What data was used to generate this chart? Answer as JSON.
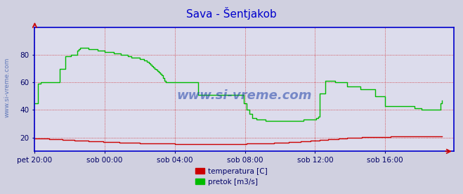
{
  "title": "Sava - Šentjakob",
  "title_color": "#0000cc",
  "title_fontsize": 11,
  "bg_color": "#d0d0e0",
  "plot_bg_color": "#dcdcec",
  "grid_color": "#cc0000",
  "tick_color": "#000066",
  "watermark": "www.si-vreme.com",
  "watermark_color": "#2244aa",
  "side_label": "www.si-vreme.com",
  "xlim": [
    0,
    287
  ],
  "ylim": [
    10,
    100
  ],
  "yticks": [
    20,
    40,
    60,
    80
  ],
  "xtick_labels": [
    "pet 20:00",
    "sob 00:00",
    "sob 04:00",
    "sob 08:00",
    "sob 12:00",
    "sob 16:00"
  ],
  "xtick_positions": [
    0,
    48,
    96,
    144,
    192,
    240
  ],
  "temp_color": "#cc0000",
  "flow_color": "#00bb00",
  "axis_color": "#0000cc",
  "legend_labels": [
    "temperatura [C]",
    "pretok [m3/s]"
  ],
  "legend_colors": [
    "#cc0000",
    "#00bb00"
  ],
  "temp_data": [
    19.5,
    19.5,
    19.4,
    19.4,
    19.3,
    19.3,
    19.2,
    19.2,
    19.1,
    19.1,
    19.0,
    19.0,
    18.9,
    18.9,
    18.8,
    18.7,
    18.7,
    18.6,
    18.6,
    18.5,
    18.4,
    18.4,
    18.3,
    18.3,
    18.2,
    18.2,
    18.1,
    18.0,
    18.0,
    17.9,
    17.9,
    17.8,
    17.8,
    17.7,
    17.7,
    17.6,
    17.6,
    17.5,
    17.5,
    17.4,
    17.4,
    17.3,
    17.3,
    17.2,
    17.2,
    17.1,
    17.1,
    17.0,
    17.0,
    16.9,
    16.9,
    16.8,
    16.8,
    16.7,
    16.7,
    16.7,
    16.6,
    16.6,
    16.5,
    16.5,
    16.5,
    16.4,
    16.4,
    16.4,
    16.3,
    16.3,
    16.2,
    16.2,
    16.2,
    16.1,
    16.1,
    16.1,
    16.0,
    16.0,
    16.0,
    15.9,
    15.9,
    15.9,
    15.8,
    15.8,
    15.8,
    15.8,
    15.7,
    15.7,
    15.7,
    15.7,
    15.6,
    15.6,
    15.6,
    15.6,
    15.5,
    15.5,
    15.5,
    15.5,
    15.5,
    15.5,
    15.4,
    15.4,
    15.4,
    15.4,
    15.4,
    15.3,
    15.3,
    15.3,
    15.3,
    15.3,
    15.3,
    15.3,
    15.3,
    15.3,
    15.3,
    15.2,
    15.2,
    15.2,
    15.2,
    15.2,
    15.2,
    15.2,
    15.2,
    15.2,
    15.2,
    15.2,
    15.2,
    15.2,
    15.2,
    15.2,
    15.2,
    15.2,
    15.2,
    15.2,
    15.2,
    15.2,
    15.2,
    15.3,
    15.3,
    15.3,
    15.3,
    15.3,
    15.3,
    15.3,
    15.3,
    15.4,
    15.4,
    15.4,
    15.4,
    15.5,
    15.5,
    15.5,
    15.5,
    15.5,
    15.6,
    15.6,
    15.6,
    15.7,
    15.7,
    15.7,
    15.8,
    15.8,
    15.8,
    15.9,
    15.9,
    15.9,
    16.0,
    16.0,
    16.1,
    16.1,
    16.2,
    16.2,
    16.3,
    16.3,
    16.4,
    16.4,
    16.5,
    16.5,
    16.6,
    16.7,
    16.7,
    16.8,
    16.8,
    16.9,
    17.0,
    17.0,
    17.1,
    17.2,
    17.2,
    17.3,
    17.4,
    17.5,
    17.5,
    17.6,
    17.7,
    17.8,
    17.8,
    17.9,
    18.0,
    18.1,
    18.2,
    18.2,
    18.3,
    18.4,
    18.5,
    18.6,
    18.6,
    18.7,
    18.8,
    18.9,
    19.0,
    19.0,
    19.1,
    19.2,
    19.3,
    19.3,
    19.4,
    19.5,
    19.6,
    19.6,
    19.7,
    19.7,
    19.8,
    19.8,
    19.9,
    19.9,
    20.0,
    20.0,
    20.1,
    20.1,
    20.1,
    20.2,
    20.2,
    20.2,
    20.3,
    20.3,
    20.3,
    20.3,
    20.4,
    20.4,
    20.4,
    20.4,
    20.5,
    20.5,
    20.5,
    20.5,
    20.5,
    20.5,
    20.6,
    20.6,
    20.6,
    20.6,
    20.6,
    20.6,
    20.6,
    20.6,
    20.7,
    20.7,
    20.7,
    20.7,
    20.7,
    20.7,
    20.7,
    20.7,
    20.7,
    20.7,
    20.7,
    20.7,
    20.7,
    20.7,
    20.7,
    20.7,
    20.7,
    20.8,
    20.8,
    20.8,
    20.8,
    20.8,
    20.8,
    20.8,
    20.8,
    20.8,
    20.8,
    20.8
  ],
  "flow_data": [
    45,
    45,
    59,
    59,
    60,
    60,
    60,
    60,
    60,
    60,
    60,
    60,
    60,
    60,
    60,
    60,
    60,
    70,
    70,
    70,
    70,
    79,
    79,
    79,
    79,
    80,
    80,
    80,
    80,
    83,
    84,
    85,
    85,
    85,
    85,
    85,
    85,
    84,
    84,
    84,
    84,
    84,
    84,
    83,
    83,
    83,
    83,
    83,
    82,
    82,
    82,
    82,
    82,
    82,
    81,
    81,
    81,
    81,
    81,
    80,
    80,
    80,
    80,
    80,
    79,
    79,
    78,
    78,
    78,
    78,
    78,
    78,
    77,
    77,
    77,
    76,
    76,
    75,
    74,
    73,
    72,
    71,
    70,
    69,
    68,
    67,
    66,
    65,
    63,
    61,
    60,
    60,
    60,
    60,
    60,
    60,
    60,
    60,
    60,
    60,
    60,
    60,
    60,
    60,
    60,
    60,
    60,
    60,
    60,
    60,
    60,
    60,
    51,
    51,
    51,
    51,
    51,
    51,
    51,
    51,
    51,
    51,
    51,
    51,
    51,
    51,
    51,
    51,
    51,
    51,
    51,
    51,
    51,
    51,
    51,
    51,
    51,
    51,
    51,
    51,
    51,
    51,
    51,
    45,
    45,
    40,
    40,
    37,
    37,
    34,
    34,
    34,
    33,
    33,
    33,
    33,
    33,
    33,
    32,
    32,
    32,
    32,
    32,
    32,
    32,
    32,
    32,
    32,
    32,
    32,
    32,
    32,
    32,
    32,
    32,
    32,
    32,
    32,
    32,
    32,
    32,
    32,
    32,
    32,
    33,
    33,
    33,
    33,
    33,
    33,
    33,
    33,
    33,
    34,
    35,
    52,
    52,
    52,
    52,
    61,
    61,
    61,
    61,
    61,
    61,
    61,
    60,
    60,
    60,
    60,
    60,
    60,
    60,
    60,
    57,
    57,
    57,
    57,
    57,
    57,
    57,
    57,
    57,
    55,
    55,
    55,
    55,
    55,
    55,
    55,
    55,
    55,
    55,
    50,
    50,
    50,
    50,
    50,
    50,
    50,
    43,
    43,
    43,
    43,
    43,
    43,
    43,
    43,
    43,
    43,
    43,
    43,
    43,
    43,
    43,
    43,
    43,
    43,
    43,
    43,
    41,
    41,
    41,
    41,
    41,
    40,
    40,
    40,
    40,
    40,
    40,
    40,
    40,
    40,
    40,
    40,
    40,
    40,
    45,
    47
  ]
}
